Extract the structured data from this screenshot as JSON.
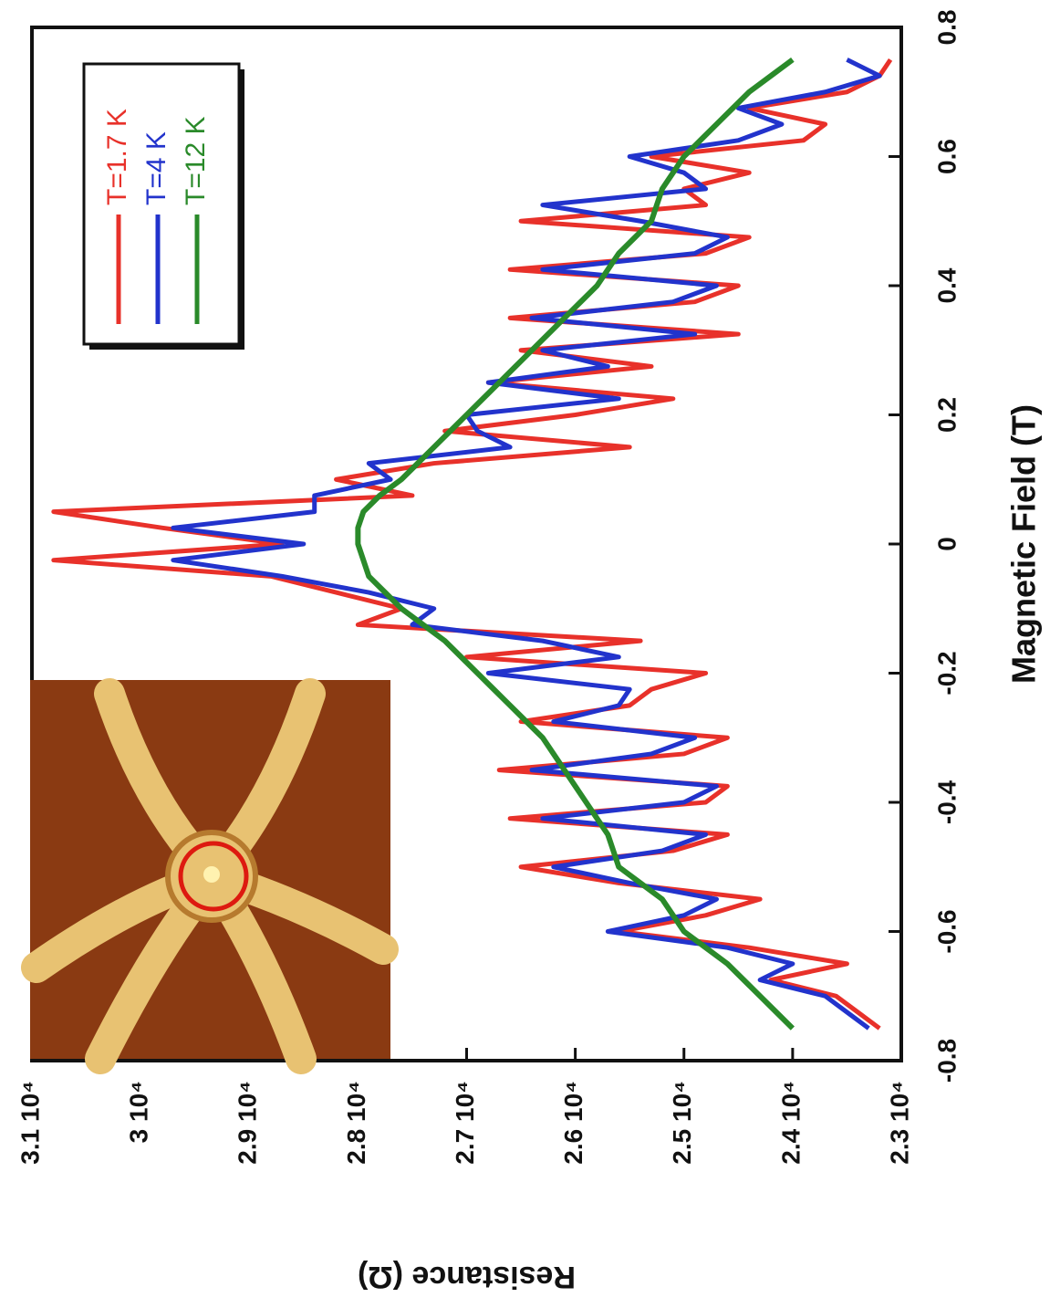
{
  "chart_data": {
    "type": "line",
    "xlabel": "Magnetic Field (T)",
    "ylabel": "Resistance (Ω)",
    "x": [
      -0.75,
      -0.725,
      -0.7,
      -0.675,
      -0.65,
      -0.625,
      -0.6,
      -0.575,
      -0.55,
      -0.525,
      -0.5,
      -0.475,
      -0.45,
      -0.425,
      -0.4,
      -0.375,
      -0.35,
      -0.325,
      -0.3,
      -0.275,
      -0.25,
      -0.225,
      -0.2,
      -0.175,
      -0.15,
      -0.125,
      -0.1,
      -0.075,
      -0.05,
      -0.025,
      0,
      0.025,
      0.05,
      0.075,
      0.1,
      0.125,
      0.15,
      0.175,
      0.2,
      0.225,
      0.25,
      0.275,
      0.3,
      0.325,
      0.35,
      0.375,
      0.4,
      0.425,
      0.45,
      0.475,
      0.5,
      0.525,
      0.55,
      0.575,
      0.6,
      0.625,
      0.65,
      0.675,
      0.7,
      0.725,
      0.75
    ],
    "series": [
      {
        "name": "T=1.7 K",
        "color": "#e8312a",
        "values": [
          23200,
          23400,
          23600,
          24200,
          23500,
          24400,
          25600,
          24800,
          24300,
          25600,
          26500,
          25100,
          24600,
          26600,
          24800,
          24600,
          26700,
          25000,
          24600,
          26500,
          25500,
          25300,
          24800,
          27000,
          25400,
          28000,
          27600,
          28200,
          28800,
          30800,
          28700,
          29800,
          30800,
          27500,
          28200,
          27300,
          25500,
          27200,
          26000,
          25100,
          26800,
          25300,
          26500,
          24500,
          26600,
          24900,
          24500,
          26600,
          24800,
          24400,
          26500,
          24800,
          25000,
          24400,
          25300,
          23900,
          23700,
          24400,
          23500,
          23200,
          23100
        ]
      },
      {
        "name": "T=4 K",
        "color": "#2233cc",
        "values": [
          23300,
          23500,
          23700,
          24300,
          24000,
          24600,
          25700,
          25000,
          24700,
          25500,
          26200,
          25200,
          24800,
          26300,
          25000,
          24700,
          26400,
          25300,
          24900,
          26200,
          25600,
          25500,
          26800,
          25600,
          26300,
          27500,
          27300,
          27900,
          28700,
          29700,
          28500,
          29700,
          28400,
          28400,
          27700,
          27900,
          26600,
          26900,
          27000,
          25600,
          26800,
          25700,
          26300,
          24900,
          26400,
          25100,
          24700,
          26300,
          24900,
          24600,
          25400,
          26300,
          24800,
          25000,
          25500,
          24500,
          24100,
          24500,
          23700,
          23200,
          23500
        ]
      },
      {
        "name": "T=12 K",
        "color": "#2a8a2a",
        "values": [
          24000,
          24150,
          24300,
          24450,
          24600,
          24800,
          25000,
          25100,
          25200,
          25400,
          25600,
          25650,
          25700,
          25800,
          25900,
          26000,
          26100,
          26200,
          26300,
          26450,
          26600,
          26750,
          26900,
          27050,
          27200,
          27400,
          27600,
          27750,
          27900,
          27950,
          28000,
          28000,
          27950,
          27800,
          27600,
          27450,
          27300,
          27150,
          27000,
          26850,
          26700,
          26550,
          26400,
          26250,
          26100,
          25950,
          25800,
          25700,
          25600,
          25450,
          25300,
          25250,
          25200,
          25100,
          25000,
          24850,
          24700,
          24550,
          24400,
          24200,
          24000
        ]
      }
    ],
    "xlim": [
      -0.8,
      0.8
    ],
    "xticks": [
      -0.8,
      -0.6,
      -0.4,
      -0.2,
      0,
      0.2,
      0.4,
      0.6,
      0.8
    ],
    "ylim": [
      23000,
      31000
    ],
    "yticks": [
      {
        "value": 23000,
        "label": "2.3 10⁴"
      },
      {
        "value": 24000,
        "label": "2.4 10⁴"
      },
      {
        "value": 25000,
        "label": "2.5 10⁴"
      },
      {
        "value": 26000,
        "label": "2.6 10⁴"
      },
      {
        "value": 27000,
        "label": "2.7 10⁴"
      },
      {
        "value": 28000,
        "label": "2.8 10⁴"
      },
      {
        "value": 29000,
        "label": "2.9 10⁴"
      },
      {
        "value": 30000,
        "label": "3 10⁴"
      },
      {
        "value": 31000,
        "label": "3.1 10⁴"
      }
    ],
    "grid": false,
    "legend": "lower-right"
  }
}
